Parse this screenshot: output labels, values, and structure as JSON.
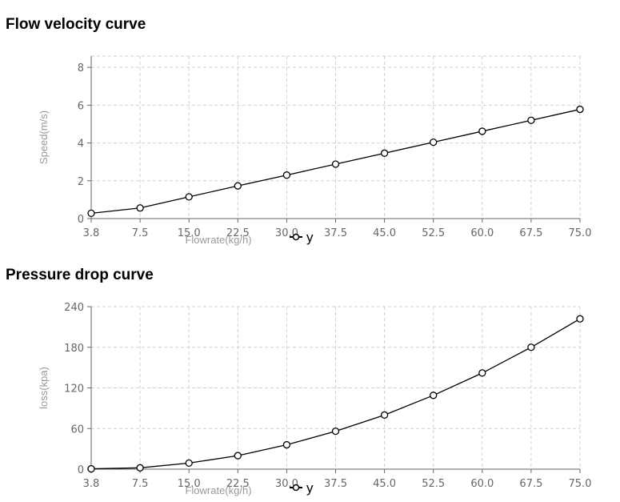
{
  "chart_data": [
    {
      "type": "line",
      "title": "Flow velocity curve",
      "xlabel": "Flowrate(kg/h)",
      "ylabel": "Speed(m/s)",
      "categories": [
        "3.8",
        "7.5",
        "15.0",
        "22.5",
        "30.0",
        "37.5",
        "45.0",
        "52.5",
        "60.0",
        "67.5",
        "75.0"
      ],
      "yticks": [
        0,
        2,
        4,
        6,
        8
      ],
      "ylim": [
        0,
        8.6
      ],
      "grid": true,
      "legend": "bottom-center",
      "series": [
        {
          "name": "y",
          "values": [
            0.28,
            0.56,
            1.15,
            1.73,
            2.3,
            2.88,
            3.46,
            4.04,
            4.62,
            5.2,
            5.78
          ]
        }
      ]
    },
    {
      "type": "line",
      "title": "Pressure drop curve",
      "xlabel": "Flowrate(kg/h)",
      "ylabel": "loss(kpa)",
      "categories": [
        "3.8",
        "7.5",
        "15.0",
        "22.5",
        "30.0",
        "37.5",
        "45.0",
        "52.5",
        "60.0",
        "67.5",
        "75.0"
      ],
      "yticks": [
        0,
        60,
        120,
        180,
        240
      ],
      "ylim": [
        0,
        240
      ],
      "grid": true,
      "legend": "bottom-center",
      "series": [
        {
          "name": "y",
          "values": [
            0.5,
            2,
            9,
            20,
            36,
            56,
            80,
            109,
            142,
            180,
            222
          ]
        }
      ]
    }
  ]
}
